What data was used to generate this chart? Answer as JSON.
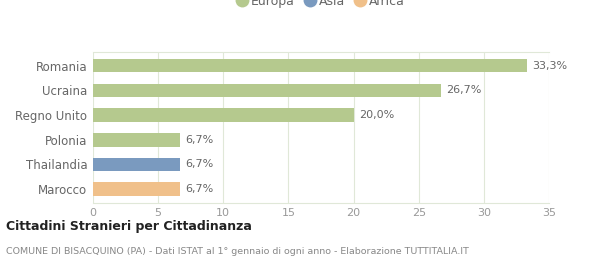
{
  "categories": [
    "Romania",
    "Ucraina",
    "Regno Unito",
    "Polonia",
    "Thailandia",
    "Marocco"
  ],
  "values": [
    33.3,
    26.7,
    20.0,
    6.7,
    6.7,
    6.7
  ],
  "labels": [
    "33,3%",
    "26,7%",
    "20,0%",
    "6,7%",
    "6,7%",
    "6,7%"
  ],
  "bar_colors": [
    "#b5c98e",
    "#b5c98e",
    "#b5c98e",
    "#b5c98e",
    "#7a9abf",
    "#f0c08a"
  ],
  "legend_items": [
    {
      "label": "Europa",
      "color": "#b5c98e"
    },
    {
      "label": "Asia",
      "color": "#7a9abf"
    },
    {
      "label": "Africa",
      "color": "#f0c08a"
    }
  ],
  "xlim": [
    0,
    35
  ],
  "xticks": [
    0,
    5,
    10,
    15,
    20,
    25,
    30,
    35
  ],
  "title": "Cittadini Stranieri per Cittadinanza",
  "subtitle": "COMUNE DI BISACQUINO (PA) - Dati ISTAT al 1° gennaio di ogni anno - Elaborazione TUTTITALIA.IT",
  "background_color": "#ffffff",
  "grid_color": "#e0e8d8",
  "bar_height": 0.55,
  "label_color": "#666666",
  "tick_color": "#999999",
  "title_color": "#222222",
  "subtitle_color": "#888888"
}
